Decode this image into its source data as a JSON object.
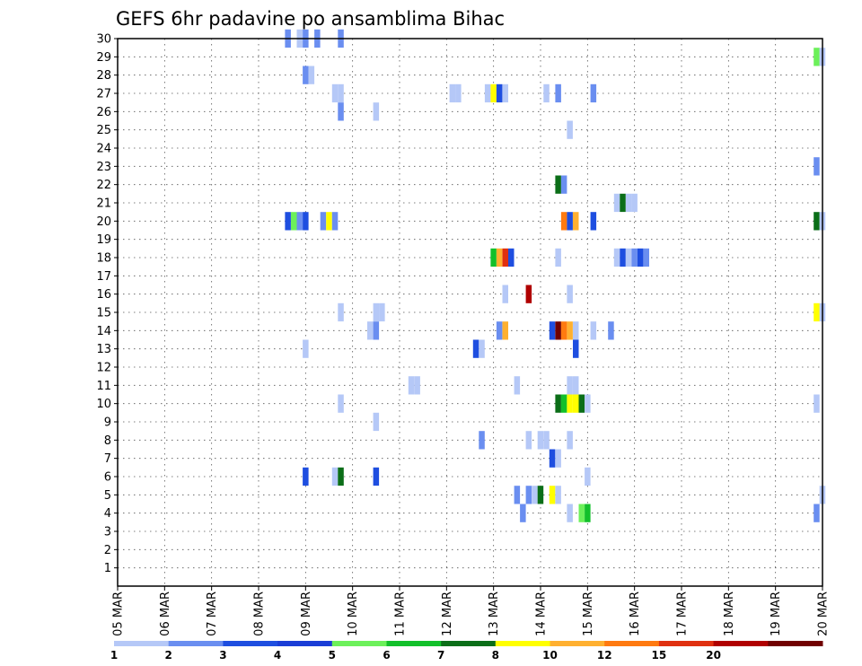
{
  "chart_data": {
    "type": "heatmap",
    "title": "GEFS 6hr padavine po ansamblima Bihac",
    "ylabel": "",
    "xlabel": "",
    "y_ticks": [
      1,
      2,
      3,
      4,
      5,
      6,
      7,
      8,
      9,
      10,
      11,
      12,
      13,
      14,
      15,
      16,
      17,
      18,
      19,
      20,
      21,
      22,
      23,
      24,
      25,
      26,
      27,
      28,
      29,
      30
    ],
    "ylim": [
      0,
      30
    ],
    "x_ticks": [
      "05 MAR",
      "06 MAR",
      "07 MAR",
      "08 MAR",
      "09 MAR",
      "10 MAR",
      "11 MAR",
      "12 MAR",
      "13 MAR",
      "14 MAR",
      "15 MAR",
      "16 MAR",
      "17 MAR",
      "18 MAR",
      "19 MAR",
      "20 MAR"
    ],
    "x_range_steps": [
      0,
      60
    ],
    "x_unit": "6-hour step from 05 MAR 00Z",
    "grid": true,
    "legend": {
      "placement": "bottom",
      "thresholds": [
        "1",
        "2",
        "3",
        "4",
        "5",
        "6",
        "7",
        "8",
        "10",
        "12",
        "15",
        "20"
      ],
      "colors": [
        "#b5c8f7",
        "#6a8ef0",
        "#1e4ee0",
        "#1a3dd6",
        "#6cf05a",
        "#12c02a",
        "#0b6e18",
        "#ffff00",
        "#ffb030",
        "#ff7a10",
        "#e03010",
        "#b00000",
        "#700000"
      ]
    },
    "cells": [
      [
        14.5,
        30,
        1
      ],
      [
        15.5,
        30,
        0
      ],
      [
        16,
        30,
        1
      ],
      [
        17,
        30,
        1
      ],
      [
        19,
        30,
        1
      ],
      [
        59.5,
        29,
        4
      ],
      [
        60,
        29,
        0
      ],
      [
        16,
        28,
        1
      ],
      [
        16.5,
        28,
        0
      ],
      [
        18.5,
        27,
        0
      ],
      [
        19,
        27,
        0
      ],
      [
        28.5,
        27,
        0
      ],
      [
        29,
        27,
        0
      ],
      [
        31.5,
        27,
        0
      ],
      [
        32,
        27,
        7
      ],
      [
        32.5,
        27,
        2
      ],
      [
        33,
        27,
        0
      ],
      [
        36.5,
        27,
        0
      ],
      [
        37.5,
        27,
        1
      ],
      [
        40.5,
        27,
        1
      ],
      [
        19,
        26,
        1
      ],
      [
        22,
        26,
        0
      ],
      [
        38.5,
        25,
        0
      ],
      [
        59.5,
        23,
        1
      ],
      [
        37.5,
        22,
        6
      ],
      [
        38,
        22,
        1
      ],
      [
        42.5,
        21,
        0
      ],
      [
        43,
        21,
        6
      ],
      [
        43.5,
        21,
        0
      ],
      [
        44,
        21,
        0
      ],
      [
        14.5,
        20,
        2
      ],
      [
        15,
        20,
        4
      ],
      [
        15.5,
        20,
        1
      ],
      [
        16,
        20,
        2
      ],
      [
        17.5,
        20,
        1
      ],
      [
        18,
        20,
        7
      ],
      [
        18.5,
        20,
        1
      ],
      [
        38,
        20,
        9
      ],
      [
        38.5,
        20,
        2
      ],
      [
        39,
        20,
        8
      ],
      [
        40.5,
        20,
        2
      ],
      [
        59.5,
        20,
        6
      ],
      [
        60,
        20,
        0
      ],
      [
        32,
        18,
        5
      ],
      [
        32.5,
        18,
        8
      ],
      [
        33,
        18,
        10
      ],
      [
        33.5,
        18,
        2
      ],
      [
        37.5,
        18,
        0
      ],
      [
        42.5,
        18,
        0
      ],
      [
        43,
        18,
        2
      ],
      [
        43.5,
        18,
        0
      ],
      [
        44,
        18,
        1
      ],
      [
        44.5,
        18,
        2
      ],
      [
        45,
        18,
        1
      ],
      [
        33,
        16,
        0
      ],
      [
        35,
        16,
        11
      ],
      [
        38.5,
        16,
        0
      ],
      [
        19,
        15,
        0
      ],
      [
        22,
        15,
        0
      ],
      [
        22.5,
        15,
        0
      ],
      [
        59.5,
        15,
        7
      ],
      [
        60,
        15,
        0
      ],
      [
        21.5,
        14,
        0
      ],
      [
        22,
        14,
        1
      ],
      [
        32.5,
        14,
        1
      ],
      [
        33,
        14,
        8
      ],
      [
        37,
        14,
        2
      ],
      [
        37.5,
        14,
        12
      ],
      [
        38,
        14,
        9
      ],
      [
        38.5,
        14,
        8
      ],
      [
        39,
        14,
        0
      ],
      [
        40.5,
        14,
        0
      ],
      [
        42,
        14,
        1
      ],
      [
        16,
        13,
        0
      ],
      [
        30.5,
        13,
        2
      ],
      [
        31,
        13,
        0
      ],
      [
        39,
        13,
        2
      ],
      [
        25,
        11,
        0
      ],
      [
        25.5,
        11,
        0
      ],
      [
        34,
        11,
        0
      ],
      [
        38.5,
        11,
        0
      ],
      [
        39,
        11,
        0
      ],
      [
        19,
        10,
        0
      ],
      [
        37.5,
        10,
        6
      ],
      [
        38,
        10,
        5
      ],
      [
        38.5,
        10,
        7
      ],
      [
        39,
        10,
        7
      ],
      [
        39.5,
        10,
        6
      ],
      [
        40,
        10,
        0
      ],
      [
        59.5,
        10,
        0
      ],
      [
        22,
        9,
        0
      ],
      [
        31,
        8,
        1
      ],
      [
        35,
        8,
        0
      ],
      [
        36,
        8,
        0
      ],
      [
        36.5,
        8,
        0
      ],
      [
        38.5,
        8,
        0
      ],
      [
        37,
        7,
        2
      ],
      [
        37.5,
        7,
        0
      ],
      [
        16,
        6,
        2
      ],
      [
        18.5,
        6,
        0
      ],
      [
        19,
        6,
        6
      ],
      [
        22,
        6,
        2
      ],
      [
        40,
        6,
        0
      ],
      [
        34,
        5,
        1
      ],
      [
        35,
        5,
        1
      ],
      [
        35.5,
        5,
        0
      ],
      [
        36,
        5,
        6
      ],
      [
        37,
        5,
        7
      ],
      [
        37.5,
        5,
        0
      ],
      [
        60,
        5,
        0
      ],
      [
        34.5,
        4,
        1
      ],
      [
        38.5,
        4,
        0
      ],
      [
        39.5,
        4,
        4
      ],
      [
        40,
        4,
        5
      ],
      [
        59.5,
        4,
        1
      ]
    ]
  }
}
